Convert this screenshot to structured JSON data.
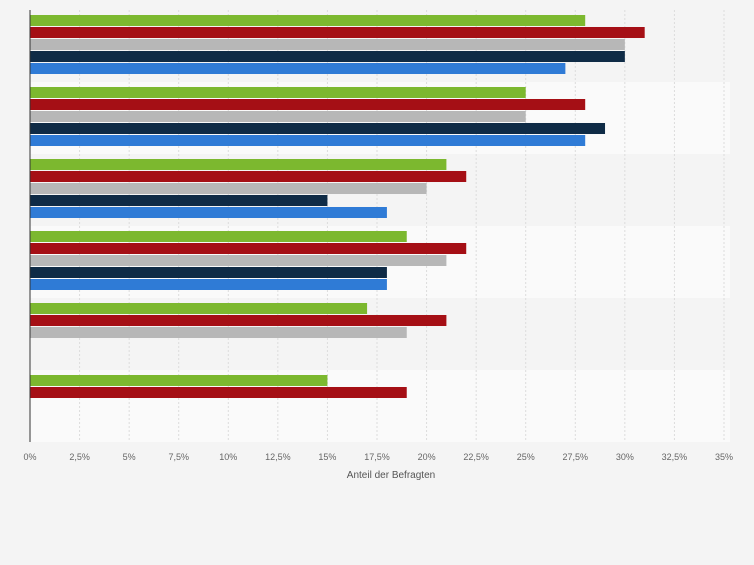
{
  "chart_data": {
    "type": "bar",
    "orientation": "horizontal",
    "title": "",
    "xlabel": "Anteil der Befragten",
    "ylabel": "",
    "xlim": [
      0,
      35
    ],
    "x_ticks": [
      0,
      2.5,
      5,
      7.5,
      10,
      12.5,
      15,
      17.5,
      20,
      22.5,
      25,
      27.5,
      30,
      32.5,
      35
    ],
    "x_tick_labels": [
      "0%",
      "2,5%",
      "5%",
      "7,5%",
      "10%",
      "12,5%",
      "15%",
      "17,5%",
      "20%",
      "22,5%",
      "25%",
      "27,5%",
      "30%",
      "32,5%",
      "35%"
    ],
    "grid": true,
    "legend": "none",
    "colors": [
      "#7cb82f",
      "#a50f15",
      "#b7b7b7",
      "#0f2b46",
      "#2f7bd6"
    ],
    "groups": [
      {
        "values": [
          28,
          31,
          30,
          30,
          27
        ]
      },
      {
        "values": [
          25,
          28,
          25,
          29,
          28
        ]
      },
      {
        "values": [
          21,
          22,
          20,
          15,
          18
        ]
      },
      {
        "values": [
          19,
          22,
          21,
          18,
          18
        ]
      },
      {
        "values": [
          17,
          21,
          19,
          null,
          null
        ]
      },
      {
        "values": [
          15,
          19,
          null,
          null,
          null
        ]
      }
    ]
  }
}
